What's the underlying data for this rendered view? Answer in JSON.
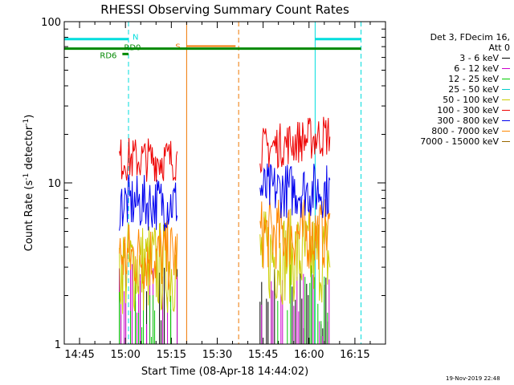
{
  "chart_data": {
    "type": "line",
    "title": "RHESSI Observing Summary Count Rates",
    "xlabel": "Start Time (08-Apr-18 14:44:02)",
    "ylabel_main": "Count Rate (s",
    "ylabel_sup1": "-1",
    "ylabel_mid": " detector",
    "ylabel_sup2": "-1",
    "ylabel_end": ")",
    "y_scale": "log",
    "ylim": [
      1,
      100
    ],
    "xlim": [
      "14:40",
      "16:25"
    ],
    "x_ticks": [
      "14:45",
      "15:00",
      "15:15",
      "15:30",
      "15:45",
      "16:00",
      "16:15"
    ],
    "y_ticks": [
      {
        "value": 1,
        "label": "1"
      },
      {
        "value": 10,
        "label": "10"
      },
      {
        "value": 100,
        "label": "100"
      }
    ],
    "legend_header": [
      "Det 3, FDecim 16,",
      "Att 0"
    ],
    "legend_placement": "right",
    "series": [
      {
        "name": "3 - 6 keV",
        "color": "#000000",
        "segments": [
          {
            "start": "14:58",
            "end": "15:17",
            "level": 1.1
          },
          {
            "start": "15:44",
            "end": "16:07",
            "level": 1.1
          }
        ]
      },
      {
        "name": "6 - 12 keV",
        "color": "#cc00cc",
        "segments": [
          {
            "start": "14:58",
            "end": "15:17",
            "level": 1.2
          },
          {
            "start": "15:44",
            "end": "16:07",
            "level": 1.2
          }
        ]
      },
      {
        "name": "12 - 25 keV",
        "color": "#00cc00",
        "segments": [
          {
            "start": "14:58",
            "end": "15:17",
            "level": 1.3
          },
          {
            "start": "15:44",
            "end": "16:07",
            "level": 1.3
          }
        ]
      },
      {
        "name": "25 - 50 keV",
        "color": "#00cccc",
        "segments": []
      },
      {
        "name": "50 - 100 keV",
        "color": "#cccc00",
        "segments": [
          {
            "start": "14:58",
            "end": "15:17",
            "level": 3.0
          },
          {
            "start": "15:44",
            "end": "16:07",
            "level": 3.5
          }
        ]
      },
      {
        "name": "100 - 300 keV",
        "color": "#ee0000",
        "segments": [
          {
            "start": "14:58",
            "end": "15:17",
            "level": 14.0
          },
          {
            "start": "15:44",
            "end": "16:07",
            "level": 16.0
          }
        ]
      },
      {
        "name": "300 - 800 keV",
        "color": "#0000ee",
        "segments": [
          {
            "start": "14:58",
            "end": "15:17",
            "level": 7.5
          },
          {
            "start": "15:44",
            "end": "16:07",
            "level": 9.0
          }
        ]
      },
      {
        "name": "800 - 7000 keV",
        "color": "#ff8800",
        "segments": [
          {
            "start": "14:58",
            "end": "15:17",
            "level": 3.5
          },
          {
            "start": "15:44",
            "end": "16:07",
            "level": 4.8
          }
        ]
      },
      {
        "name": "7000 - 15000 keV",
        "color": "#996600",
        "segments": []
      }
    ],
    "annotations": {
      "night_lines": {
        "color": "#00dddd",
        "solid": [
          "14:40",
          "16:02"
        ],
        "dashed": [
          "15:01",
          "16:17"
        ],
        "bar_level": 78,
        "bar_segments": [
          [
            "14:40",
            "15:01"
          ],
          [
            "16:02",
            "16:17"
          ]
        ],
        "label": "N"
      },
      "saa_lines": {
        "color": "#ee7700",
        "solid": [
          "15:20"
        ],
        "dashed": [
          "15:37"
        ],
        "bar_level": 80,
        "bar_segments": [
          [
            "15:20",
            "15:36"
          ]
        ],
        "label": "S"
      },
      "rd_line": {
        "color": "#008800",
        "level": 68,
        "range": [
          "14:40",
          "16:17"
        ],
        "label": "RD0"
      },
      "rd6": {
        "color": "#008800",
        "level": 63,
        "range": [
          "14:59",
          "15:01"
        ],
        "label": "RD6"
      }
    },
    "grid": false
  },
  "footer": {
    "timestamp": "19-Nov-2019 22:48"
  }
}
